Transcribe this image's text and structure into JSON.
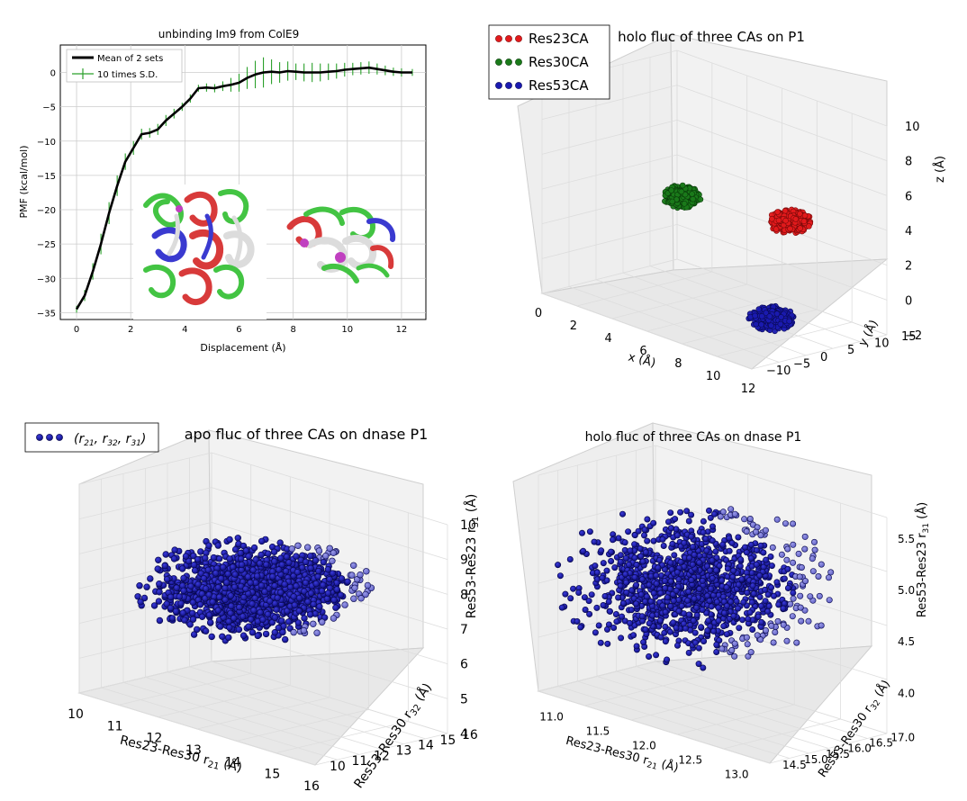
{
  "chart_data": [
    {
      "panel": "top-left",
      "type": "line",
      "title": "unbinding Im9 from ColE9",
      "xlabel": "Displacement (Å)",
      "ylabel": "PMF (kcal/mol)",
      "xlim": [
        -0.6,
        12.9
      ],
      "ylim": [
        -36,
        4
      ],
      "xticks": [
        0,
        2,
        4,
        6,
        8,
        10,
        12
      ],
      "yticks": [
        0,
        -5,
        -10,
        -15,
        -20,
        -25,
        -30,
        -35
      ],
      "grid": true,
      "legend_position": "top-left",
      "legend": [
        "Mean of 2 sets",
        "10 times S.D."
      ],
      "series": [
        {
          "name": "Mean of 2 sets",
          "color": "#000000",
          "x": [
            0,
            0.3,
            0.6,
            0.9,
            1.2,
            1.5,
            1.8,
            2.1,
            2.4,
            2.7,
            3.0,
            3.3,
            3.6,
            3.9,
            4.2,
            4.5,
            4.8,
            5.1,
            5.4,
            5.7,
            6.0,
            6.3,
            6.6,
            6.9,
            7.2,
            7.5,
            7.8,
            8.1,
            8.4,
            8.7,
            9.0,
            9.3,
            9.6,
            9.9,
            10.2,
            10.5,
            10.8,
            11.1,
            11.4,
            11.7,
            12.0,
            12.4
          ],
          "y": [
            -34.5,
            -32.5,
            -29.0,
            -25.0,
            -20.5,
            -16.5,
            -13.0,
            -11.0,
            -9.0,
            -8.8,
            -8.3,
            -7.0,
            -6.0,
            -5.0,
            -3.8,
            -2.3,
            -2.2,
            -2.3,
            -2.0,
            -1.8,
            -1.5,
            -0.8,
            -0.3,
            0.0,
            0.1,
            0.0,
            0.2,
            0.1,
            0.0,
            0.0,
            0.0,
            0.1,
            0.2,
            0.4,
            0.5,
            0.6,
            0.7,
            0.5,
            0.3,
            0.1,
            0.0,
            0.0
          ]
        },
        {
          "name": "10 times S.D.",
          "color": "#2aa02a",
          "error": [
            0.5,
            0.8,
            1.2,
            1.5,
            1.6,
            1.5,
            1.2,
            1.0,
            0.8,
            0.7,
            0.8,
            0.8,
            0.7,
            0.6,
            0.6,
            0.5,
            0.6,
            0.6,
            0.7,
            1.0,
            1.3,
            1.6,
            2.0,
            2.2,
            1.8,
            1.5,
            1.4,
            1.2,
            1.3,
            1.4,
            1.3,
            1.2,
            1.1,
            1.0,
            0.9,
            0.9,
            0.9,
            0.8,
            0.7,
            0.6,
            0.6,
            0.5
          ]
        }
      ]
    },
    {
      "panel": "top-right",
      "type": "scatter",
      "title": "holo fluc of three CAs on P1",
      "xlabel": "x (Å)",
      "ylabel": "y (Å)",
      "zlabel": "z (Å)",
      "xlim": [
        0,
        12
      ],
      "ylim": [
        -10,
        15
      ],
      "zlim": [
        -2,
        10
      ],
      "xticks": [
        0,
        2,
        4,
        6,
        8,
        10,
        12
      ],
      "yticks": [
        -10,
        -5,
        0,
        5,
        10,
        15
      ],
      "zticks": [
        -2,
        0,
        2,
        4,
        6,
        8,
        10
      ],
      "legend_position": "top-left",
      "series": [
        {
          "name": "Res23CA",
          "color": "#e31a1c",
          "center": [
            10.5,
            2.0,
            5.0
          ]
        },
        {
          "name": "Res30CA",
          "color": "#1a7a1a",
          "center": [
            4.0,
            3.0,
            4.0
          ]
        },
        {
          "name": "Res53CA",
          "color": "#1a1ab0",
          "center": [
            11.0,
            -3.0,
            0.0
          ]
        }
      ]
    },
    {
      "panel": "bottom-left",
      "type": "scatter",
      "title": "apo fluc of three CAs on dnase P1",
      "legend": [
        "(r21, r32, r31)"
      ],
      "legend_position": "top-left",
      "xlabel": "Res23-Res30 r21 (Å)",
      "ylabel": "Res53-Res30 r32 (Å)",
      "zlabel": "Res53-Res23 r31 (Å)",
      "xlim": [
        10,
        16
      ],
      "ylim": [
        10,
        16
      ],
      "zlim": [
        4,
        10
      ],
      "xticks": [
        10,
        11,
        12,
        13,
        14,
        15,
        16
      ],
      "yticks": [
        10,
        11,
        12,
        13,
        14,
        15,
        16
      ],
      "zticks": [
        4,
        5,
        6,
        7,
        8,
        9,
        10
      ],
      "series": [
        {
          "name": "(r21, r32, r31)",
          "color": "#1f1fb4",
          "center": [
            12.7,
            12.7,
            6.5
          ]
        }
      ]
    },
    {
      "panel": "bottom-right",
      "type": "scatter",
      "title": "holo fluc of three CAs on dnase P1",
      "xlabel": "Res23-Res30 r21 (Å)",
      "ylabel": "Res53-Res30 r32 (Å)",
      "zlabel": "Res53-Res23 r31 (Å)",
      "xlim": [
        10.8,
        13.3
      ],
      "ylim": [
        14.5,
        17.2
      ],
      "zlim": [
        3.6,
        5.7
      ],
      "xticks": [
        11.0,
        11.5,
        12.0,
        12.5,
        13.0
      ],
      "yticks": [
        14.5,
        15.0,
        15.5,
        16.0,
        16.5,
        17.0
      ],
      "zticks": [
        4.0,
        4.5,
        5.0,
        5.5
      ],
      "series": [
        {
          "name": "(r21, r32, r31)",
          "color": "#1f1fb4",
          "center": [
            12.0,
            15.8,
            4.6
          ]
        }
      ]
    }
  ],
  "text": {
    "tl_title": "unbinding Im9 from ColE9",
    "tl_xlabel": "Displacement (Å)",
    "tl_ylabel": "PMF (kcal/mol)",
    "tl_leg1": "Mean of 2 sets",
    "tl_leg2": "10 times S.D.",
    "tr_title": "holo fluc of three CAs on P1",
    "tr_leg1": "Res23CA",
    "tr_leg2": "Res30CA",
    "tr_leg3": "Res53CA",
    "tr_xlabel": "x (Å)",
    "tr_ylabel": "y (Å)",
    "tr_zlabel": "z (Å)",
    "bl_title": "apo fluc of three CAs on dnase P1",
    "bl_leg_pre": "(r",
    "bl_leg_s1": "21",
    "bl_leg_m1": ", r",
    "bl_leg_s2": "32",
    "bl_leg_m2": ", r",
    "bl_leg_s3": "31",
    "bl_leg_post": ")",
    "bl_x_pre": "Res23-Res30 r",
    "bl_x_sub": "21",
    "bl_x_post": " (Å)",
    "bl_y_pre": "Res53-Res30 r",
    "bl_y_sub": "32",
    "bl_y_post": " (Å)",
    "bl_z_pre": "Res53-Res23 r",
    "bl_z_sub": "31",
    "bl_z_post": " (Å)",
    "br_title": "holo fluc of three CAs on dnase P1",
    "br_x_pre": "Res23-Res30 r",
    "br_x_sub": "21",
    "br_x_post": " (Å)",
    "br_y_pre": "Res53-Res30 r",
    "br_y_sub": "32",
    "br_y_post": " (Å)",
    "br_z_pre": "Res53-Res23 r",
    "br_z_sub": "31",
    "br_z_post": " (Å)"
  },
  "colors": {
    "protein_red": "#d83a3a",
    "protein_green": "#43c443",
    "protein_blue": "#3a3ad0",
    "protein_white": "#dcdcdc",
    "protein_magenta": "#c040c0"
  },
  "icons": {
    "inset": "protein-ribbon-structures"
  }
}
